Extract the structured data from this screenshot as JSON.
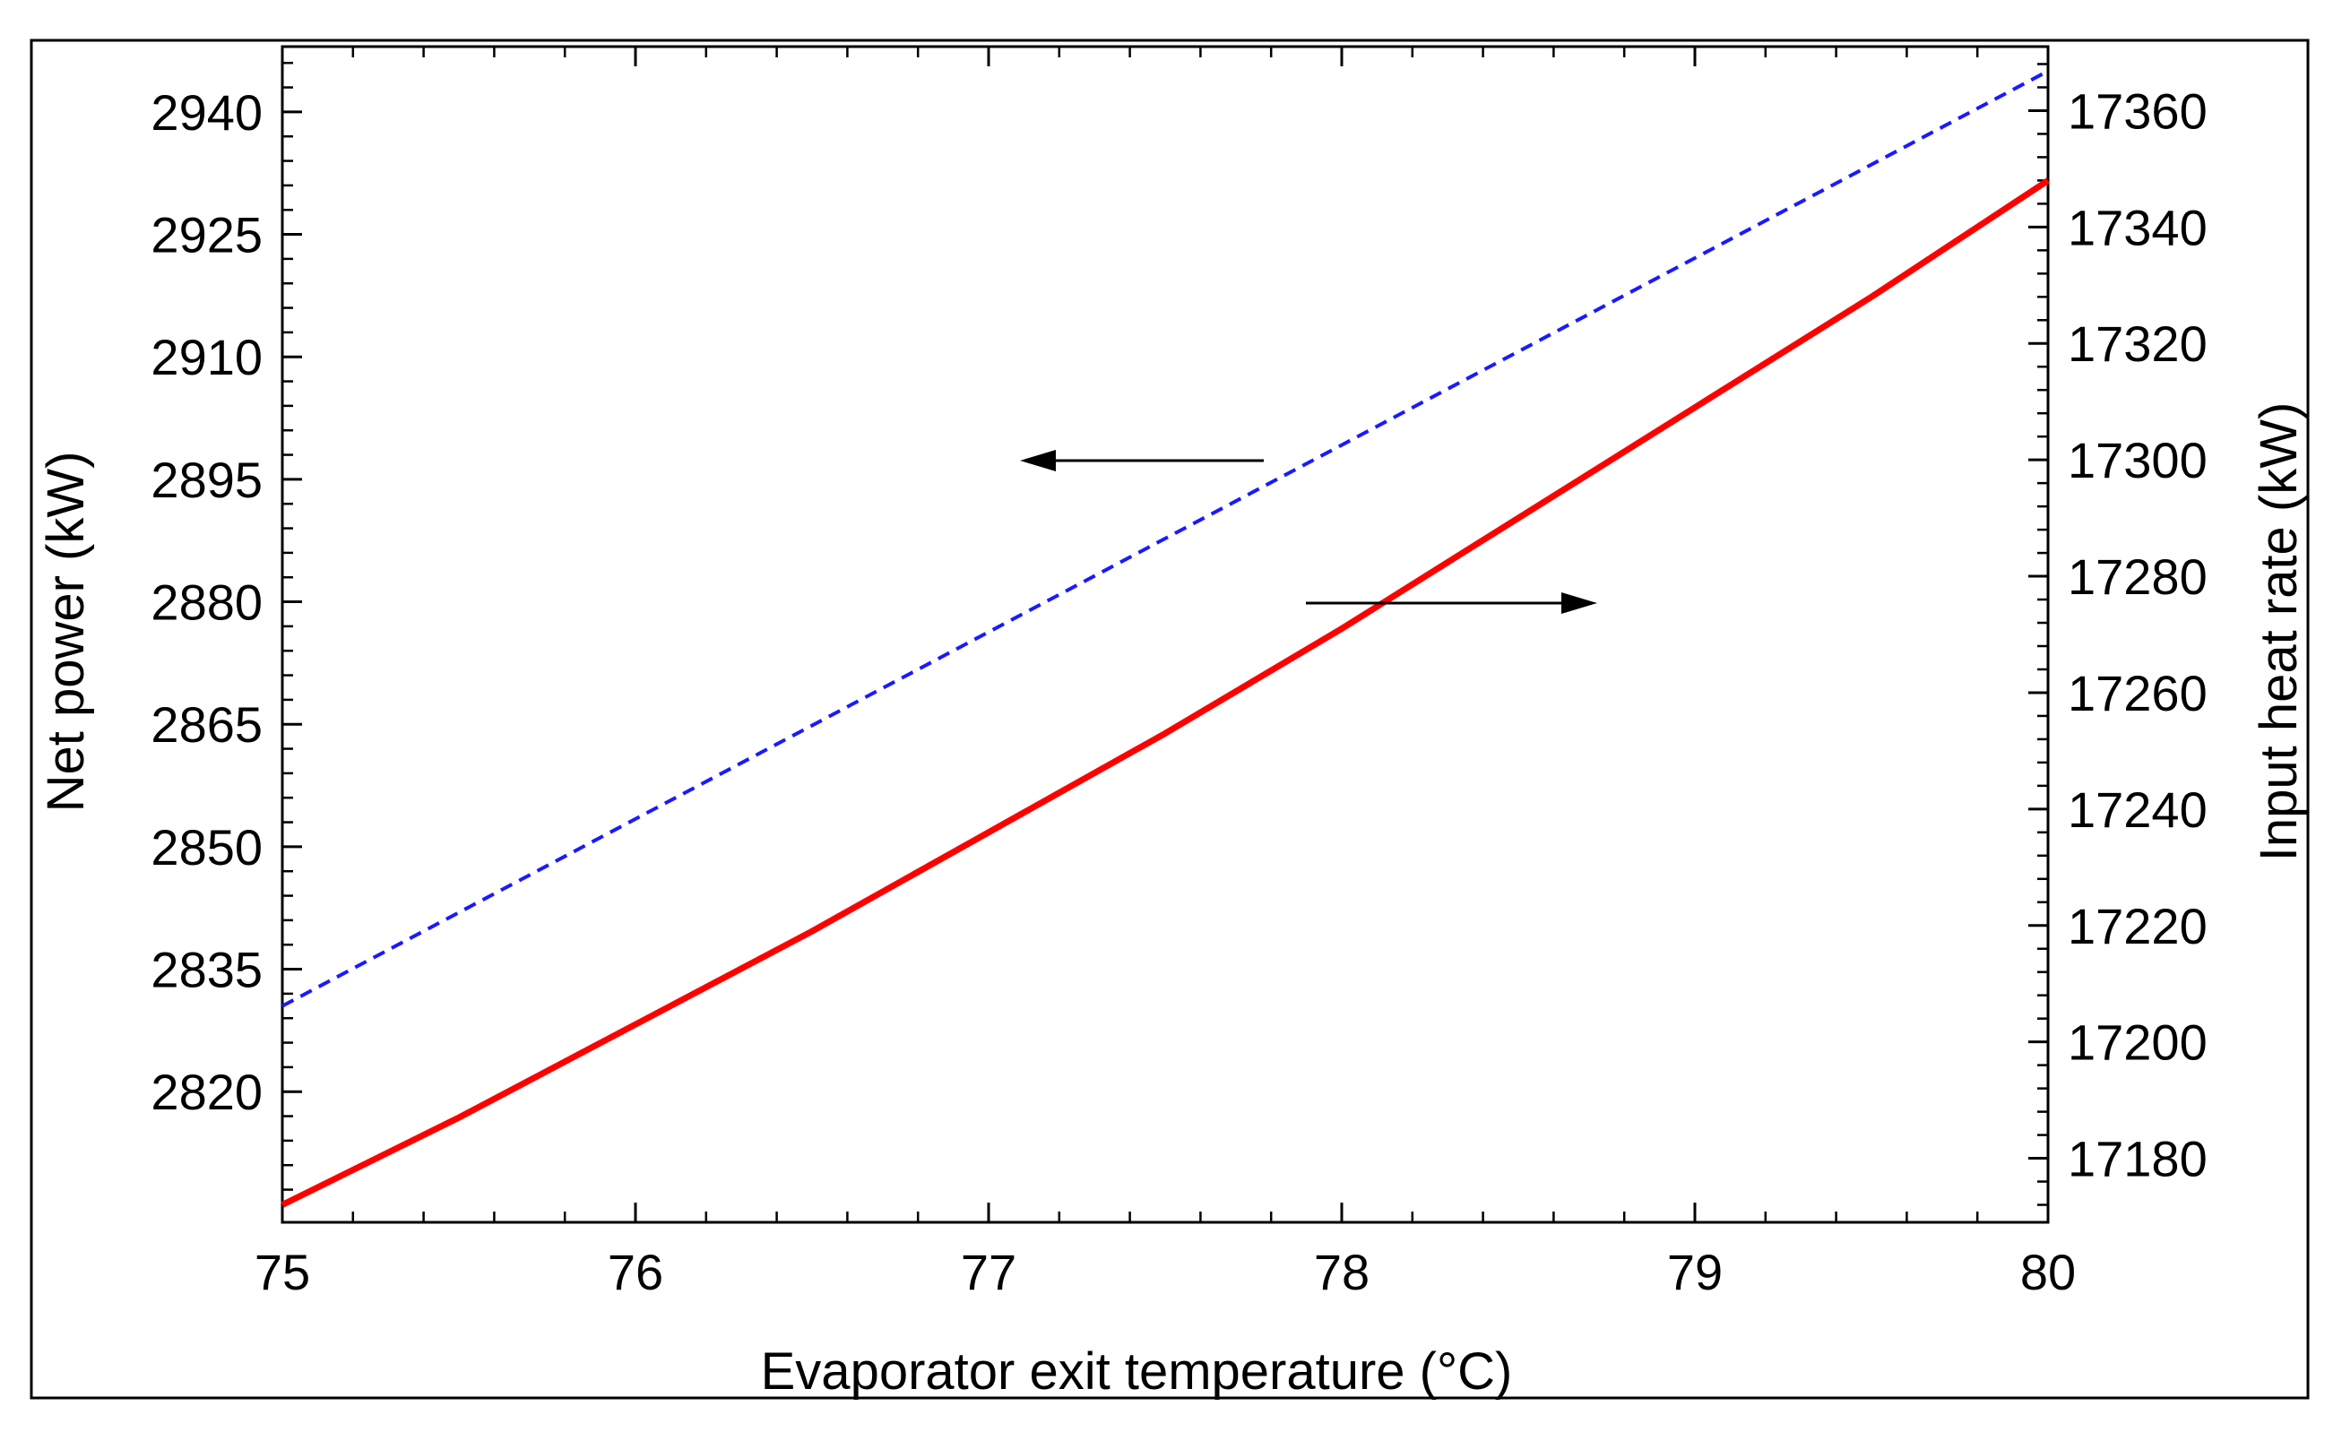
{
  "chart_data": {
    "type": "line",
    "title": "",
    "xlabel": "Evaporator exit temperature (°C)",
    "ylabel_left": "Net power (kW)",
    "ylabel_right": "Input heat rate (kW)",
    "xlim": [
      75,
      80
    ],
    "ylim_left": [
      2804,
      2948
    ],
    "ylim_right": [
      17169,
      17371
    ],
    "x_ticks": [
      75,
      76,
      77,
      78,
      79,
      80
    ],
    "y_left_ticks": [
      2820,
      2835,
      2850,
      2865,
      2880,
      2895,
      2910,
      2925,
      2940
    ],
    "y_right_ticks": [
      17180,
      17200,
      17220,
      17240,
      17260,
      17280,
      17300,
      17320,
      17340,
      17360
    ],
    "grid": false,
    "series": [
      {
        "name": "Net power",
        "axis": "left",
        "style": "dashed",
        "color": "#1a1aff",
        "x": [
          75,
          76,
          77,
          78,
          79,
          80
        ],
        "y": [
          2830.5,
          2853.4,
          2876.3,
          2899.2,
          2922.1,
          2945.0
        ]
      },
      {
        "name": "Input heat rate",
        "axis": "right",
        "style": "solid",
        "color": "#ff0000",
        "x": [
          75,
          75.5,
          76,
          76.5,
          77,
          77.5,
          78,
          78.5,
          79,
          79.5,
          80
        ],
        "y": [
          17172,
          17187,
          17203,
          17219,
          17236,
          17253,
          17271,
          17290,
          17309,
          17328,
          17348
        ]
      }
    ],
    "annotations": [
      {
        "type": "arrow",
        "direction": "left",
        "points_to_axis": "left",
        "series": "Net power"
      },
      {
        "type": "arrow",
        "direction": "right",
        "points_to_axis": "right",
        "series": "Input heat rate"
      }
    ]
  }
}
